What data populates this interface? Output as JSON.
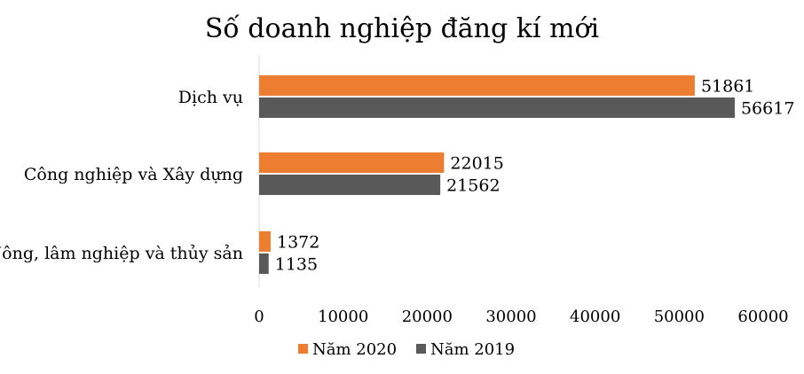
{
  "chart_data": {
    "type": "bar",
    "orientation": "horizontal",
    "title": "Số doanh nghiệp đăng kí mới",
    "categories": [
      "Dịch vụ",
      "Công nghiệp và Xây dựng",
      "Nông, lâm nghiệp và thủy sản"
    ],
    "series": [
      {
        "name": "Năm 2020",
        "color": "#ED7D31",
        "values": [
          51861,
          22015,
          1372
        ]
      },
      {
        "name": "Năm 2019",
        "color": "#595959",
        "values": [
          56617,
          21562,
          1135
        ]
      }
    ],
    "xlim": [
      0,
      60000
    ],
    "xticks": [
      0,
      10000,
      20000,
      30000,
      40000,
      50000,
      60000
    ],
    "xlabel": "",
    "ylabel": "",
    "grid": false,
    "legend_position": "bottom",
    "data_labels": true
  }
}
